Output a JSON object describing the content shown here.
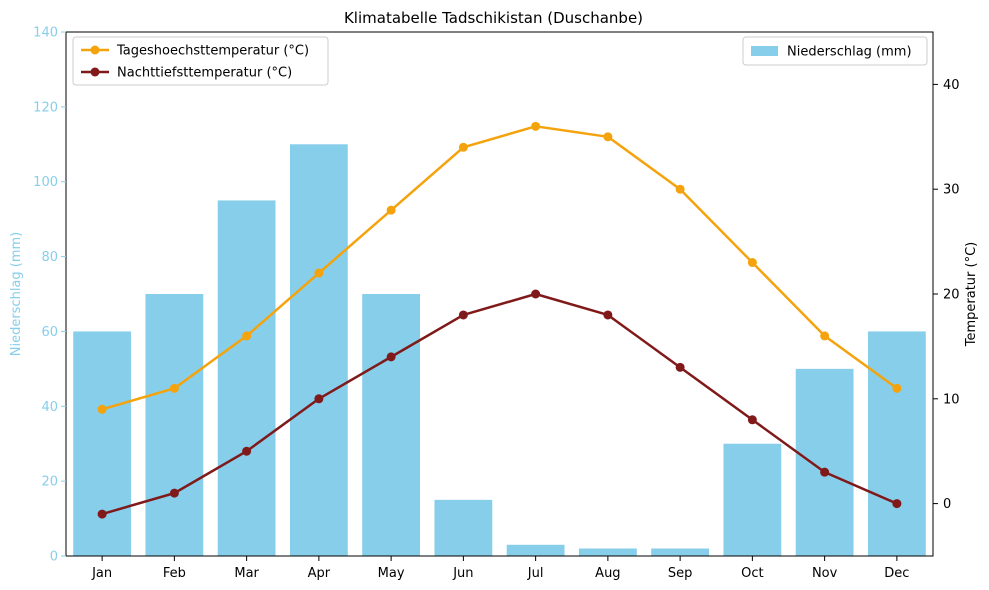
{
  "chart_data": {
    "type": "bar",
    "title": "Klimatabelle Tadschikistan (Duschanbe)",
    "categories": [
      "Jan",
      "Feb",
      "Mar",
      "Apr",
      "May",
      "Jun",
      "Jul",
      "Aug",
      "Sep",
      "Oct",
      "Nov",
      "Dec"
    ],
    "bar_series": {
      "name": "Niederschlag (mm)",
      "color": "#87ceeb",
      "values": [
        60,
        70,
        95,
        110,
        70,
        15,
        3,
        2,
        2,
        30,
        50,
        60
      ]
    },
    "line_series": [
      {
        "name": "Tageshoechsttemperatur (°C)",
        "color": "#f5a30c",
        "values": [
          9,
          11,
          16,
          22,
          28,
          34,
          36,
          35,
          30,
          23,
          16,
          11
        ]
      },
      {
        "name": "Nachttiefsttemperatur (°C)",
        "color": "#801a1a",
        "values": [
          -1,
          1,
          5,
          10,
          14,
          18,
          20,
          18,
          13,
          8,
          3,
          0
        ]
      }
    ],
    "left_axis": {
      "label": "Niederschlag (mm)",
      "color": "#87ceeb",
      "ylim": [
        0,
        140
      ],
      "ticks": [
        0,
        20,
        40,
        60,
        80,
        100,
        120,
        140
      ]
    },
    "right_axis": {
      "label": "Temperatur (°C)",
      "color": "#000000",
      "ylim": [
        -5,
        45
      ],
      "ticks": [
        0,
        10,
        20,
        30,
        40
      ]
    },
    "grid": false,
    "legend_lines_position": "top-left",
    "legend_bars_position": "top-right"
  }
}
